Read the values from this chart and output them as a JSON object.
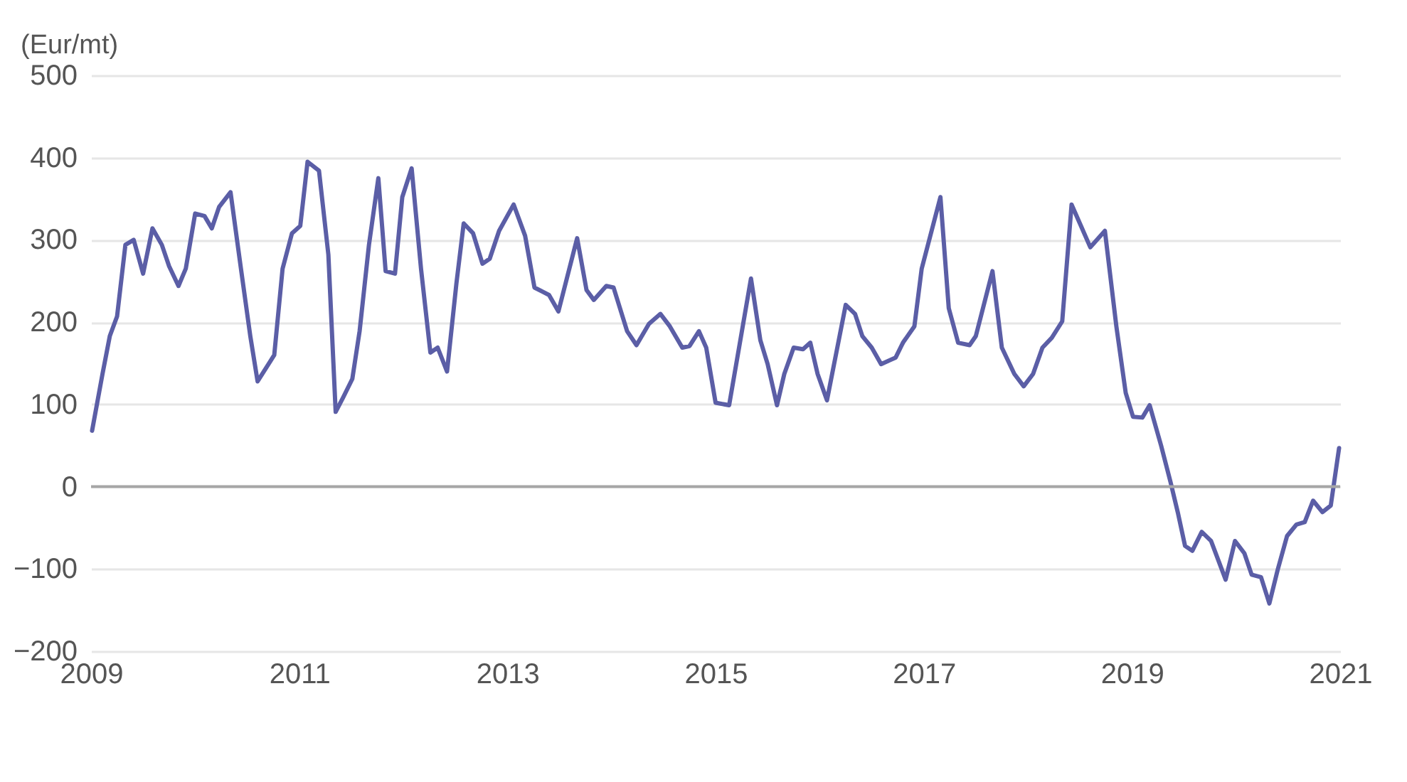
{
  "chart_data": {
    "type": "line",
    "ylabel": "(Eur/mt)",
    "x": [
      2009.01,
      2009.11,
      2009.18,
      2009.25,
      2009.33,
      2009.41,
      2009.5,
      2009.59,
      2009.68,
      2009.75,
      2009.84,
      2009.91,
      2010.0,
      2010.09,
      2010.16,
      2010.23,
      2010.34,
      2010.44,
      2010.53,
      2010.6,
      2010.69,
      2010.76,
      2010.84,
      2010.93,
      2011.01,
      2011.08,
      2011.19,
      2011.28,
      2011.35,
      2011.42,
      2011.51,
      2011.58,
      2011.67,
      2011.76,
      2011.83,
      2011.92,
      2011.99,
      2012.08,
      2012.17,
      2012.26,
      2012.33,
      2012.42,
      2012.51,
      2012.58,
      2012.67,
      2012.76,
      2012.83,
      2012.92,
      2013.06,
      2013.17,
      2013.26,
      2013.4,
      2013.49,
      2013.67,
      2013.76,
      2013.83,
      2013.95,
      2014.02,
      2014.15,
      2014.24,
      2014.36,
      2014.47,
      2014.56,
      2014.68,
      2014.75,
      2014.84,
      2014.91,
      2015.0,
      2015.13,
      2015.34,
      2015.43,
      2015.5,
      2015.59,
      2015.66,
      2015.75,
      2015.84,
      2015.91,
      2015.98,
      2016.07,
      2016.16,
      2016.25,
      2016.34,
      2016.41,
      2016.5,
      2016.59,
      2016.73,
      2016.8,
      2016.91,
      2016.98,
      2017.16,
      2017.24,
      2017.33,
      2017.44,
      2017.5,
      2017.66,
      2017.75,
      2017.87,
      2017.96,
      2018.05,
      2018.14,
      2018.23,
      2018.33,
      2018.42,
      2018.6,
      2018.74,
      2018.85,
      2018.94,
      2019.01,
      2019.1,
      2019.17,
      2019.28,
      2019.37,
      2019.44,
      2019.51,
      2019.58,
      2019.67,
      2019.76,
      2019.9,
      2019.99,
      2020.08,
      2020.15,
      2020.24,
      2020.32,
      2020.4,
      2020.49,
      2020.58,
      2020.66,
      2020.74,
      2020.83,
      2020.91,
      2020.99
    ],
    "series": [
      {
        "color": "#5b5ea6",
        "values": [
          68,
          137,
          183,
          207,
          294,
          300,
          259,
          314,
          294,
          268,
          244,
          265,
          332,
          329,
          314,
          340,
          358,
          265,
          183,
          128,
          146,
          160,
          265,
          308,
          317,
          395,
          384,
          282,
          91,
          108,
          131,
          189,
          294,
          375,
          262,
          259,
          352,
          387,
          265,
          163,
          169,
          140,
          247,
          320,
          308,
          271,
          277,
          311,
          343,
          305,
          242,
          233,
          213,
          302,
          239,
          227,
          244,
          242,
          189,
          172,
          198,
          210,
          195,
          169,
          171,
          189,
          169,
          102,
          99,
          253,
          178,
          149,
          99,
          137,
          169,
          167,
          175,
          137,
          105,
          163,
          221,
          210,
          183,
          169,
          149,
          157,
          175,
          195,
          265,
          352,
          217,
          175,
          172,
          183,
          262,
          169,
          137,
          122,
          137,
          169,
          181,
          201,
          343,
          291,
          311,
          195,
          114,
          85,
          84,
          99,
          50,
          6,
          -31,
          -72,
          -78,
          -55,
          -66,
          -113,
          -66,
          -81,
          -107,
          -110,
          -142,
          -101,
          -60,
          -46,
          -43,
          -17,
          -31,
          -23,
          47
        ]
      }
    ],
    "xlim": [
      2009,
      2021
    ],
    "xticks": [
      2009,
      2011,
      2013,
      2015,
      2017,
      2019,
      2021
    ],
    "ylim": [
      -200,
      500
    ],
    "yticks": [
      -200,
      -100,
      0,
      100,
      200,
      300,
      400,
      500
    ],
    "grid": "y",
    "ref_lines": [
      {
        "axis": "y",
        "value": 0,
        "color": "#a6a6a6"
      }
    ]
  }
}
